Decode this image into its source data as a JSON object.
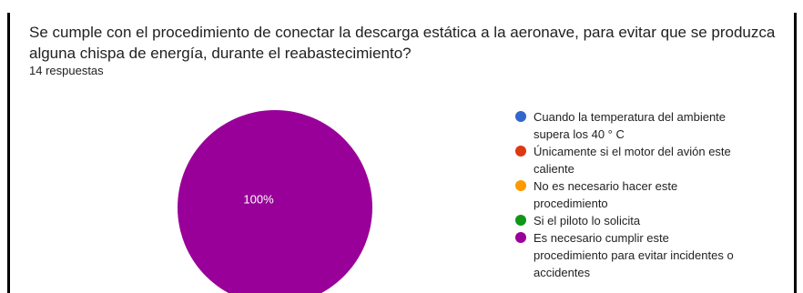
{
  "chart_data": {
    "type": "pie",
    "title": "Se cumple con el procedimiento de conectar la descarga estática a la aeronave, para evitar que se produzca alguna chispa de energía, durante el reabastecimiento?",
    "subtitle": "14 respuestas",
    "categories": [
      "Cuando la temperatura del ambiente supera los 40 ° C",
      "Únicamente si el motor del avión este caliente",
      "No es necesario hacer este procedimiento",
      "Si el piloto lo solicita",
      "Es necesario cumplir este procedimiento para evitar incidentes o accidentes"
    ],
    "values": [
      0,
      0,
      0,
      0,
      100
    ],
    "value_labels": [
      null,
      null,
      null,
      null,
      "100%"
    ],
    "colors": [
      "#3366cc",
      "#dc3912",
      "#ff9900",
      "#109618",
      "#990099"
    ]
  }
}
